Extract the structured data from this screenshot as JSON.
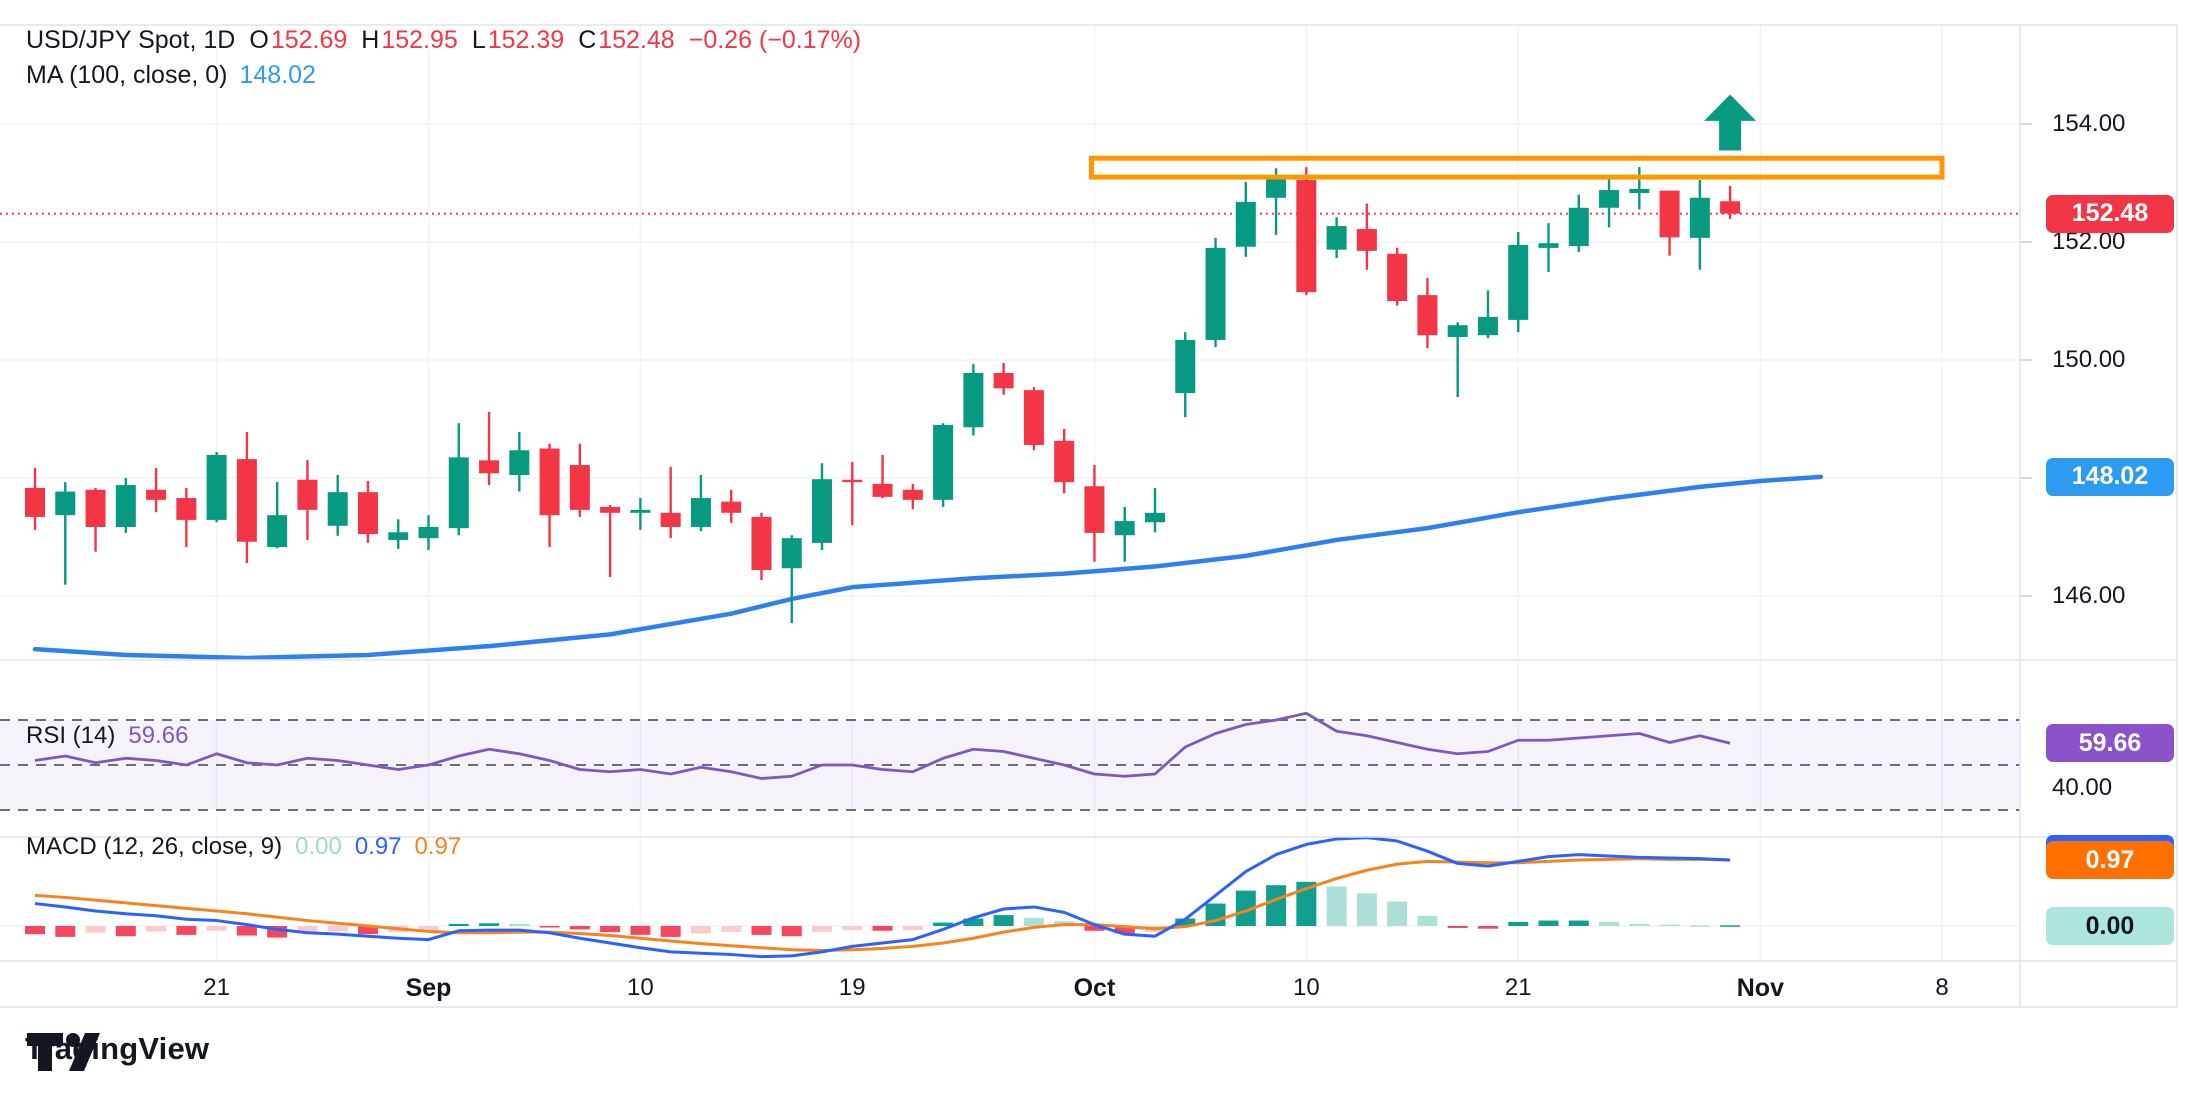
{
  "header": {
    "symbol_title": "USD/JPY Spot, 1D",
    "ohlc_tokens": [
      {
        "label": "O",
        "value": "152.69"
      },
      {
        "label": "H",
        "value": "152.95"
      },
      {
        "label": "L",
        "value": "152.39"
      },
      {
        "label": "C",
        "value": "152.48"
      }
    ],
    "change_text": "−0.26 (−0.17%)",
    "ma_label": "MA (100, close, 0)",
    "ma_value": "148.02"
  },
  "rsi_header": {
    "label": "RSI (14)",
    "value": "59.66"
  },
  "macd_header": {
    "label": "MACD (12, 26, close, 9)",
    "hist_value": "0.00",
    "macd_value": "0.97",
    "signal_value": "0.97"
  },
  "axes": {
    "price_ticks": [
      "154.00",
      "152.00",
      "150.00",
      "148.00",
      "146.00"
    ],
    "rsi_tick": "40.00",
    "time_ticks": [
      {
        "label": "21",
        "bold": false
      },
      {
        "label": "Sep",
        "bold": true
      },
      {
        "label": "10",
        "bold": false
      },
      {
        "label": "19",
        "bold": false
      },
      {
        "label": "Oct",
        "bold": true
      },
      {
        "label": "10",
        "bold": false
      },
      {
        "label": "21",
        "bold": false
      },
      {
        "label": "Nov",
        "bold": true
      },
      {
        "label": "8",
        "bold": false
      }
    ],
    "badges": {
      "last_price": "152.48",
      "ma": "148.02",
      "rsi": "59.66",
      "macd_signal": "0.97",
      "macd_hist": "0.00"
    }
  },
  "footer": {
    "brand": "TradingView"
  },
  "colors": {
    "up": "#089981",
    "down": "#F23645",
    "ma_line": "#2E80F0",
    "ma_badge": "#2E9BF3",
    "price_badge": "#F23645",
    "price_line": "#F23645",
    "macd_line": "#2962FF",
    "signal_line": "#F7831C",
    "signal_badge": "#FF7000",
    "hist_up_strong": "#109E8E",
    "hist_up_weak": "#ACE0D6",
    "hist_down_strong": "#F5465D",
    "hist_down_weak": "#FACBCD",
    "hist_badge_bg": "#ACE5DB",
    "hist_badge_text": "#131722",
    "macd_header_hist": "#9FD9CD",
    "rsi_line": "#7E57C2",
    "rsi_badge": "#8C52C9",
    "rsi_band": "rgba(126,87,194,0.08)",
    "zone": "#FF9800",
    "grid": "#F0F3FA",
    "separator": "#E0E3EB",
    "dashed": "#6A6E79",
    "text": "#131722"
  },
  "chart_data": {
    "type": "candlestick",
    "title": "USD/JPY Spot, 1D",
    "panes": [
      "price",
      "rsi",
      "macd"
    ],
    "x_axis": {
      "tick_labels": [
        "21",
        "Sep",
        "10",
        "19",
        "Oct",
        "10",
        "21",
        "Nov",
        "8"
      ],
      "tick_bar_indices": [
        6,
        13,
        20,
        27,
        35,
        42,
        49,
        57,
        63
      ]
    },
    "price_axis": {
      "tick_values": [
        154,
        152,
        150,
        148,
        146
      ],
      "visible_range": [
        144.6,
        155.3
      ]
    },
    "last_price": 152.48,
    "candles_ohlc": [
      [
        147.83,
        148.17,
        147.12,
        147.34
      ],
      [
        147.37,
        147.93,
        146.19,
        147.77
      ],
      [
        147.8,
        147.83,
        146.75,
        147.17
      ],
      [
        147.17,
        148.0,
        147.07,
        147.88
      ],
      [
        147.8,
        148.17,
        147.42,
        147.63
      ],
      [
        147.66,
        147.83,
        146.83,
        147.29
      ],
      [
        147.29,
        148.44,
        147.25,
        148.39
      ],
      [
        148.32,
        148.78,
        146.56,
        146.92
      ],
      [
        146.83,
        147.93,
        146.81,
        147.37
      ],
      [
        147.97,
        148.3,
        146.95,
        147.46
      ],
      [
        147.19,
        148.05,
        147.02,
        147.76
      ],
      [
        147.76,
        147.95,
        146.9,
        147.05
      ],
      [
        146.95,
        147.3,
        146.8,
        147.08
      ],
      [
        146.98,
        147.37,
        146.78,
        147.17
      ],
      [
        147.15,
        148.93,
        147.03,
        148.35
      ],
      [
        148.3,
        149.12,
        147.88,
        148.08
      ],
      [
        148.05,
        148.78,
        147.77,
        148.47
      ],
      [
        148.5,
        148.58,
        146.83,
        147.37
      ],
      [
        148.22,
        148.58,
        147.34,
        147.46
      ],
      [
        147.51,
        147.54,
        146.32,
        147.41
      ],
      [
        147.41,
        147.66,
        147.12,
        147.46
      ],
      [
        147.41,
        148.19,
        146.98,
        147.17
      ],
      [
        147.17,
        148.05,
        147.1,
        147.66
      ],
      [
        147.6,
        147.8,
        147.24,
        147.41
      ],
      [
        147.34,
        147.41,
        146.27,
        146.44
      ],
      [
        146.47,
        147.03,
        145.54,
        146.98
      ],
      [
        146.9,
        148.25,
        146.78,
        147.98
      ],
      [
        147.97,
        148.27,
        147.2,
        147.93
      ],
      [
        147.9,
        148.39,
        147.66,
        147.68
      ],
      [
        147.8,
        147.9,
        147.47,
        147.63
      ],
      [
        147.63,
        148.93,
        147.51,
        148.9
      ],
      [
        148.86,
        149.93,
        148.72,
        149.78
      ],
      [
        149.78,
        149.95,
        149.41,
        149.52
      ],
      [
        149.49,
        149.54,
        148.47,
        148.56
      ],
      [
        148.63,
        148.83,
        147.74,
        147.93
      ],
      [
        147.86,
        148.22,
        146.58,
        147.07
      ],
      [
        147.03,
        147.51,
        146.58,
        147.27
      ],
      [
        147.25,
        147.83,
        147.08,
        147.41
      ],
      [
        149.44,
        150.47,
        149.03,
        150.34
      ],
      [
        150.34,
        152.07,
        150.22,
        151.9
      ],
      [
        151.92,
        153.02,
        151.75,
        152.68
      ],
      [
        152.75,
        153.25,
        152.12,
        153.08
      ],
      [
        153.05,
        153.27,
        151.1,
        151.15
      ],
      [
        151.87,
        152.42,
        151.73,
        152.27
      ],
      [
        152.22,
        152.65,
        151.53,
        151.85
      ],
      [
        151.8,
        151.9,
        150.92,
        151.0
      ],
      [
        151.1,
        151.39,
        150.2,
        150.42
      ],
      [
        150.39,
        150.64,
        149.37,
        150.59
      ],
      [
        150.42,
        151.18,
        150.37,
        150.73
      ],
      [
        150.68,
        152.17,
        150.47,
        151.95
      ],
      [
        151.9,
        152.32,
        151.49,
        151.98
      ],
      [
        151.93,
        152.8,
        151.83,
        152.58
      ],
      [
        152.58,
        153.08,
        152.25,
        152.88
      ],
      [
        152.83,
        153.27,
        152.55,
        152.9
      ],
      [
        152.87,
        152.87,
        151.77,
        152.08
      ],
      [
        152.07,
        153.05,
        151.53,
        152.75
      ],
      [
        152.69,
        152.95,
        152.39,
        152.48
      ]
    ],
    "ma100": {
      "period": 100,
      "source": "close",
      "offset": 0,
      "last_value": 148.02,
      "points_bar_price": [
        [
          0,
          145.1
        ],
        [
          3,
          145.0
        ],
        [
          7,
          144.95
        ],
        [
          11,
          145.0
        ],
        [
          15,
          145.15
        ],
        [
          19,
          145.35
        ],
        [
          23,
          145.7
        ],
        [
          25,
          145.95
        ],
        [
          27,
          146.15
        ],
        [
          31,
          146.3
        ],
        [
          34,
          146.38
        ],
        [
          37,
          146.5
        ],
        [
          40,
          146.68
        ],
        [
          43,
          146.95
        ],
        [
          46,
          147.15
        ],
        [
          49,
          147.42
        ],
        [
          52,
          147.65
        ],
        [
          55,
          147.85
        ],
        [
          57,
          147.95
        ],
        [
          59,
          148.02
        ]
      ]
    },
    "rsi": {
      "period": 14,
      "last_value": 59.66,
      "levels": [
        70,
        50,
        30
      ],
      "visible_tick": 40,
      "values": [
        52,
        54,
        51,
        53,
        52,
        50,
        55,
        51,
        50,
        53,
        52,
        50,
        48,
        50,
        54,
        57,
        55,
        52,
        48,
        47,
        48,
        46,
        49,
        47,
        44,
        45,
        50,
        50,
        48,
        47,
        53,
        57,
        56,
        53,
        50,
        46,
        45,
        46,
        58,
        64,
        68,
        70,
        73,
        65,
        63,
        60,
        57,
        55,
        56,
        61,
        61,
        62,
        63,
        64,
        60,
        63,
        59.66
      ]
    },
    "macd": {
      "fast": 12,
      "slow": 26,
      "source": "close",
      "signal_period": 9,
      "last_macd": 0.97,
      "last_signal": 0.97,
      "last_hist": 0.0,
      "macd_values": [
        0.33,
        0.28,
        0.22,
        0.18,
        0.15,
        0.1,
        0.08,
        0.02,
        -0.05,
        -0.1,
        -0.12,
        -0.15,
        -0.18,
        -0.2,
        -0.07,
        -0.06,
        -0.06,
        -0.1,
        -0.18,
        -0.25,
        -0.32,
        -0.38,
        -0.4,
        -0.42,
        -0.45,
        -0.44,
        -0.38,
        -0.3,
        -0.25,
        -0.2,
        -0.05,
        0.12,
        0.25,
        0.28,
        0.2,
        0.02,
        -0.12,
        -0.15,
        0.1,
        0.45,
        0.8,
        1.05,
        1.2,
        1.28,
        1.3,
        1.25,
        1.1,
        0.92,
        0.88,
        0.95,
        1.02,
        1.05,
        1.03,
        1.01,
        1.0,
        0.99,
        0.97
      ],
      "signal_values": [
        0.45,
        0.42,
        0.38,
        0.34,
        0.3,
        0.26,
        0.22,
        0.18,
        0.13,
        0.08,
        0.04,
        0.0,
        -0.04,
        -0.08,
        -0.1,
        -0.1,
        -0.09,
        -0.09,
        -0.11,
        -0.14,
        -0.18,
        -0.22,
        -0.26,
        -0.29,
        -0.32,
        -0.35,
        -0.36,
        -0.35,
        -0.33,
        -0.3,
        -0.25,
        -0.18,
        -0.09,
        -0.02,
        0.02,
        0.02,
        -0.01,
        -0.04,
        -0.01,
        0.08,
        0.22,
        0.39,
        0.55,
        0.7,
        0.82,
        0.91,
        0.95,
        0.94,
        0.93,
        0.93,
        0.95,
        0.97,
        0.98,
        0.99,
        0.98,
        0.98,
        0.97
      ],
      "hist_values": [
        -0.12,
        -0.16,
        -0.1,
        -0.15,
        -0.08,
        -0.13,
        -0.07,
        -0.14,
        -0.17,
        -0.1,
        -0.08,
        -0.12,
        -0.09,
        -0.07,
        0.03,
        0.04,
        0.03,
        -0.02,
        -0.05,
        -0.09,
        -0.13,
        -0.16,
        -0.11,
        -0.09,
        -0.13,
        -0.15,
        -0.09,
        -0.06,
        -0.07,
        -0.06,
        0.05,
        0.11,
        0.16,
        0.12,
        0.07,
        -0.07,
        -0.11,
        -0.09,
        0.11,
        0.33,
        0.52,
        0.6,
        0.65,
        0.58,
        0.48,
        0.36,
        0.15,
        -0.03,
        -0.04,
        0.06,
        0.08,
        0.08,
        0.06,
        0.03,
        0.02,
        0.01,
        0.01
      ]
    },
    "annotations": {
      "resistance_zone": {
        "price_top": 153.42,
        "price_bottom": 153.1,
        "bar_from": 34.9,
        "bar_to": 63
      },
      "up_arrow": {
        "bar_index": 56,
        "price_tip": 154.5,
        "price_base": 153.55
      }
    }
  }
}
